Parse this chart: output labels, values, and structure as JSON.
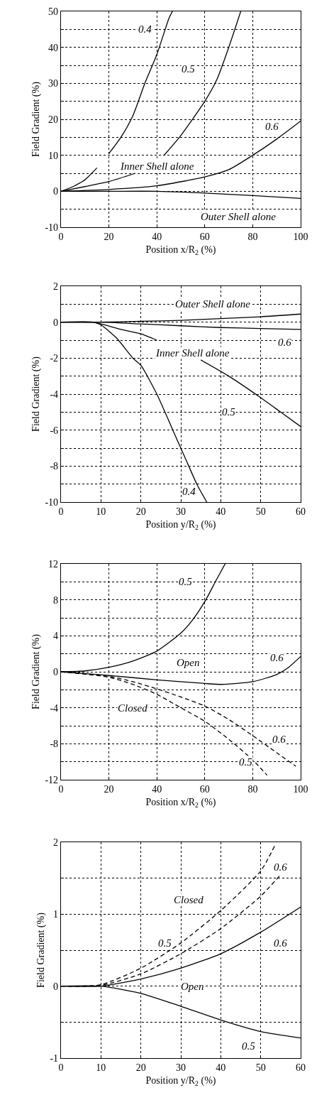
{
  "chart_data": [
    {
      "type": "line",
      "xlabel": "Position x/R$_{2}$ (%)",
      "ylabel": "Field Gradient (%)",
      "xlim": [
        0,
        100
      ],
      "xticks": [
        0,
        20,
        40,
        60,
        80,
        100
      ],
      "ylim": [
        -10,
        50
      ],
      "yticks": [
        -10,
        {
          "value": -5,
          "label": null
        },
        0,
        {
          "value": 5,
          "label": null
        },
        10,
        {
          "value": 15,
          "label": null
        },
        20,
        {
          "value": 25,
          "label": null
        },
        30,
        {
          "value": 35,
          "label": null
        },
        40,
        {
          "value": 45,
          "label": null
        },
        50
      ],
      "grid": true,
      "series": [
        {
          "color": "#000000",
          "line_style": "solid",
          "x": [
            0,
            5,
            10,
            15,
            17.5,
            20,
            25,
            30,
            35,
            40,
            45,
            46.5
          ],
          "values": [
            0,
            1.3,
            3.2,
            6.5,
            null,
            10.5,
            15,
            21,
            30,
            38,
            48,
            50
          ]
        },
        {
          "color": "#000000",
          "line_style": "solid",
          "x": [
            0,
            10,
            20,
            31,
            37,
            43,
            50,
            60,
            65,
            70,
            75
          ],
          "values": [
            0,
            1.3,
            2.7,
            5,
            null,
            10,
            15.5,
            25,
            31,
            40,
            50
          ]
        },
        {
          "color": "#000000",
          "line_style": "solid",
          "x": [
            0,
            20,
            40,
            60,
            70,
            80,
            90,
            100
          ],
          "values": [
            0,
            0.5,
            1.5,
            4,
            6,
            10,
            14.5,
            19.5
          ]
        },
        {
          "color": "#000000",
          "line_style": "solid",
          "x": [
            0,
            20,
            40,
            60,
            80,
            100
          ],
          "values": [
            0,
            0,
            0,
            -0.5,
            -1.2,
            -2
          ]
        }
      ],
      "annotations": [
        {
          "text": "0.4",
          "x": 35,
          "y": 45
        },
        {
          "text": "0.5",
          "x": 53,
          "y": 34
        },
        {
          "text": "0.6",
          "x": 88,
          "y": 18
        },
        "Inner Shell alone",
        "Outer Shell alone"
      ]
    },
    {
      "type": "line",
      "xlabel": "Position y/R$_{2}$ (%)",
      "ylabel": "Field Gradient (%)",
      "xlim": [
        0,
        60
      ],
      "xticks": [
        0,
        10,
        20,
        30,
        40,
        50,
        60
      ],
      "ylim": [
        -10,
        2
      ],
      "yticks": [
        -10,
        {
          "value": -9,
          "label": null
        },
        -8,
        {
          "value": -7,
          "label": null
        },
        -6,
        {
          "value": -5,
          "label": null
        },
        -4,
        {
          "value": -3,
          "label": null
        },
        -2,
        {
          "value": -1,
          "label": null
        },
        0,
        {
          "value": 1,
          "label": null
        },
        2
      ],
      "grid": true,
      "series": [
        {
          "color": "#000000",
          "line_style": "solid",
          "x": [
            0,
            10,
            20,
            30,
            40,
            50,
            60
          ],
          "values": [
            0,
            0,
            0.05,
            0.1,
            0.2,
            0.3,
            0.45
          ]
        },
        {
          "color": "#000000",
          "line_style": "solid",
          "x": [
            0,
            10,
            20,
            30,
            40,
            50,
            60
          ],
          "values": [
            0,
            0,
            -0.1,
            -0.2,
            -0.3,
            -0.35,
            -0.4
          ]
        },
        {
          "color": "#000000",
          "line_style": "solid",
          "x": [
            0,
            8,
            10,
            15,
            20,
            24,
            30,
            35,
            42,
            50,
            55,
            60
          ],
          "values": [
            0,
            0,
            -0.1,
            -0.4,
            -0.65,
            -1,
            null,
            -2.1,
            -3,
            -4.2,
            -5,
            -5.8
          ]
        },
        {
          "color": "#000000",
          "line_style": "solid",
          "x": [
            0,
            8,
            10,
            14,
            18,
            20,
            24,
            28,
            31,
            34,
            36.5
          ],
          "values": [
            0,
            0,
            -0.15,
            -0.9,
            -2,
            -2.4,
            -4,
            -6,
            -7.5,
            -9,
            -10
          ]
        }
      ],
      "annotations": [
        "Outer Shell alone",
        {
          "text": "0.6",
          "x": 56,
          "y": -1.1
        },
        "Inner Shell alone",
        {
          "text": "0.5",
          "x": 42,
          "y": -5
        },
        {
          "text": "0.4",
          "x": 32,
          "y": -9.4
        }
      ]
    },
    {
      "type": "line",
      "xlabel": "Position x/R$_{2}$ (%)",
      "ylabel": "Field Gradient (%)",
      "xlim": [
        0,
        100
      ],
      "xticks": [
        0,
        20,
        40,
        60,
        80,
        100
      ],
      "ylim": [
        -12,
        12
      ],
      "yticks": [
        -12,
        {
          "value": -10,
          "label": null
        },
        -8,
        {
          "value": -6,
          "label": null
        },
        -4,
        {
          "value": -2,
          "label": null
        },
        0,
        {
          "value": 2,
          "label": null
        },
        4,
        {
          "value": 6,
          "label": null
        },
        8,
        {
          "value": 10,
          "label": null
        },
        12
      ],
      "grid": true,
      "series": [
        {
          "color": "#000000",
          "line_style": "solid",
          "x": [
            0,
            10,
            20,
            30,
            40,
            50,
            55,
            60,
            65,
            68.5
          ],
          "values": [
            0,
            0.1,
            0.5,
            1.2,
            2.3,
            4.3,
            5.8,
            7.8,
            10.3,
            12
          ]
        },
        {
          "color": "#000000",
          "line_style": "solid",
          "x": [
            0,
            20,
            40,
            60,
            67,
            80,
            90,
            95,
            100
          ],
          "values": [
            0,
            -0.4,
            -0.9,
            -1.3,
            -1.4,
            -1.1,
            -0.3,
            0.5,
            1.7
          ]
        },
        {
          "color": "#000000",
          "line_style": "dashed",
          "x": [
            0,
            20,
            30,
            40,
            50,
            60,
            70,
            80,
            86
          ],
          "values": [
            0,
            -0.6,
            -1.4,
            -2.5,
            -4,
            -5.5,
            -7.5,
            -9.8,
            -11.5
          ]
        },
        {
          "color": "#000000",
          "line_style": "dashed",
          "x": [
            0,
            20,
            30,
            40,
            50,
            60,
            70,
            80,
            90,
            98
          ],
          "values": [
            0,
            -0.5,
            -1.1,
            -1.9,
            -2.8,
            -3.8,
            -5.3,
            -7.1,
            -9,
            -10.5
          ]
        }
      ],
      "annotations": [
        {
          "text": "0.5",
          "x": 52,
          "y": 10
        },
        {
          "text": "Open",
          "x": 53,
          "y": 1
        },
        {
          "text": "0.6",
          "x": 90,
          "y": 1.6
        },
        {
          "text": "Closed",
          "x": 30,
          "y": -4
        },
        {
          "text": "0.6",
          "x": 91,
          "y": -7.5
        },
        {
          "text": "0.5",
          "x": 77,
          "y": -10
        }
      ]
    },
    {
      "type": "line",
      "xlabel": "Position y/R$_{2}$ (%)",
      "ylabel": "Field Gradient (%)",
      "xlim": [
        0,
        60
      ],
      "xticks": [
        0,
        10,
        20,
        30,
        40,
        50,
        60
      ],
      "ylim": [
        -1,
        2
      ],
      "yticks": [
        -1,
        {
          "value": -0.5,
          "label": null
        },
        0,
        {
          "value": 0.5,
          "label": null
        },
        1,
        {
          "value": 1.5,
          "label": null
        },
        2
      ],
      "grid": true,
      "series": [
        {
          "color": "#000000",
          "line_style": "dashed",
          "x": [
            0,
            10,
            20,
            30,
            40,
            50,
            53.5
          ],
          "values": [
            0,
            0.02,
            0.25,
            0.6,
            1.05,
            1.6,
            1.95
          ]
        },
        {
          "color": "#000000",
          "line_style": "dashed",
          "x": [
            0,
            10,
            20,
            30,
            40,
            50,
            55
          ],
          "values": [
            0,
            0.01,
            0.17,
            0.45,
            0.8,
            1.25,
            1.55
          ]
        },
        {
          "color": "#000000",
          "line_style": "solid",
          "x": [
            0,
            10,
            20,
            30,
            40,
            50,
            60
          ],
          "values": [
            0,
            0,
            0.1,
            0.25,
            0.45,
            0.75,
            1.1
          ]
        },
        {
          "color": "#000000",
          "line_style": "solid",
          "x": [
            0,
            10,
            20,
            30,
            40,
            50,
            60
          ],
          "values": [
            0,
            0,
            -0.1,
            -0.28,
            -0.47,
            -0.63,
            -0.72
          ]
        }
      ],
      "annotations": [
        {
          "text": "0.6",
          "x": 55,
          "y": 1.65
        },
        {
          "text": "Closed",
          "x": 32,
          "y": 1.2
        },
        {
          "text": "0.5",
          "x": 26,
          "y": 0.6
        },
        {
          "text": "0.6",
          "x": 55,
          "y": 0.6
        },
        {
          "text": "Open",
          "x": 33,
          "y": 0
        },
        {
          "text": "0.5",
          "x": 47,
          "y": -0.83
        }
      ]
    }
  ]
}
